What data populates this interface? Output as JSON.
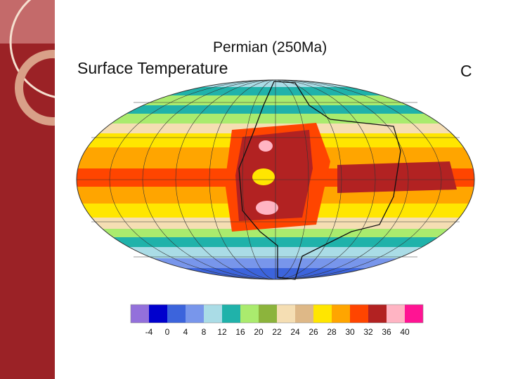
{
  "slide": {
    "title": "Permian (250Ma)",
    "subtitle": "Surface Temperature",
    "panel_label": "C",
    "sidebar_color": "#9b2226"
  },
  "colorbar": {
    "colors": [
      "#9370db",
      "#0000cd",
      "#3c64dc",
      "#7896eb",
      "#aadce6",
      "#20b2aa",
      "#aaeb6e",
      "#8cb43c",
      "#f5deb3",
      "#deb887",
      "#ffe600",
      "#ffa500",
      "#ff4500",
      "#b22222",
      "#ffb4c3",
      "#ff1493"
    ],
    "labels": [
      "-4",
      "0",
      "4",
      "8",
      "12",
      "16",
      "20",
      "22",
      "24",
      "26",
      "28",
      "30",
      "32",
      "36",
      "40"
    ]
  }
}
